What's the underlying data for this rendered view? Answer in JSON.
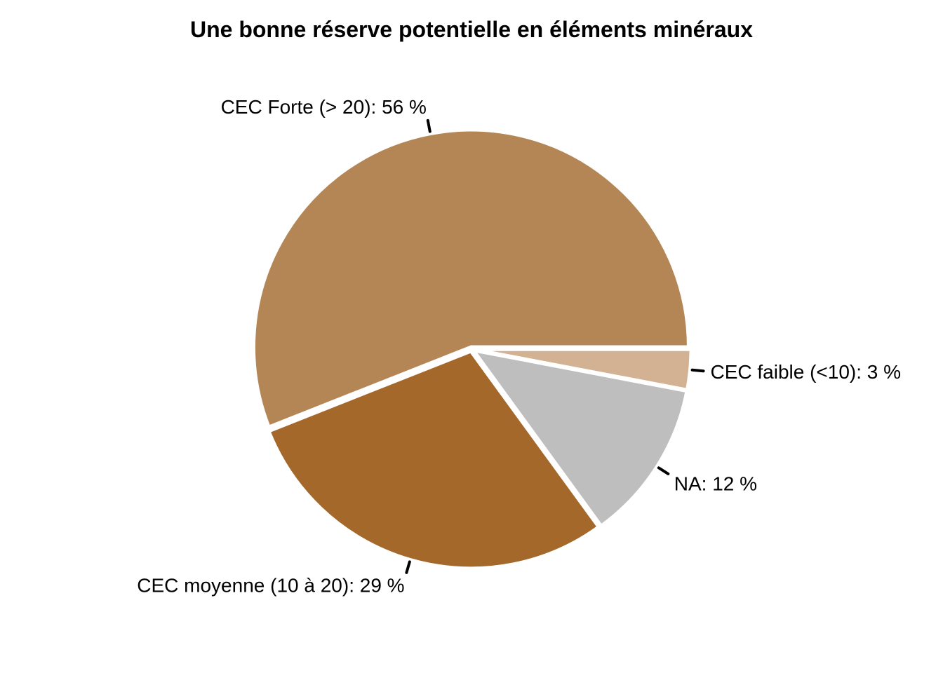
{
  "chart_data": {
    "type": "pie",
    "title": "Une bonne réserve potentielle en éléments minéraux",
    "direction": "clockwise",
    "start_angle": "3 o'clock",
    "slices": [
      {
        "category": "CEC faible (<10)",
        "value": 3,
        "label": "CEC faible (<10): 3 %",
        "color": "#d2b293"
      },
      {
        "category": "NA",
        "value": 12,
        "label": "NA: 12 %",
        "color": "#bebebe"
      },
      {
        "category": "CEC moyenne (10 à 20)",
        "value": 29,
        "label": "CEC moyenne (10 à 20): 29 %",
        "color": "#a4682a"
      },
      {
        "category": "CEC Forte (> 20)",
        "value": 56,
        "label": "CEC Forte (> 20): 56 %",
        "color": "#b48655"
      }
    ]
  }
}
